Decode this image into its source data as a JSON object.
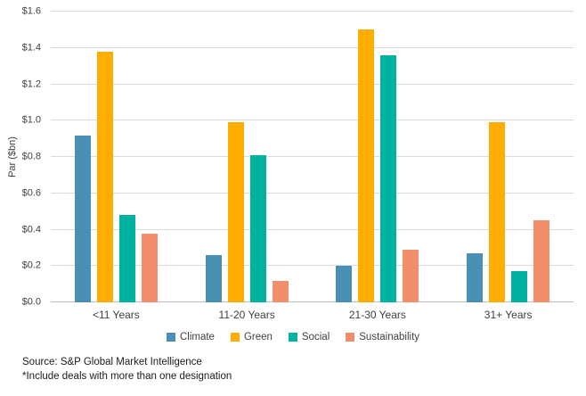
{
  "chart_data": {
    "type": "bar",
    "title": "",
    "xlabel": "",
    "ylabel": "Par ($bn)",
    "ylim": [
      0,
      1.6
    ],
    "grid": true,
    "legend_position": "bottom",
    "yticks": [
      {
        "value": 0.0,
        "label": "$0.0"
      },
      {
        "value": 0.2,
        "label": "$0.2"
      },
      {
        "value": 0.4,
        "label": "$0.4"
      },
      {
        "value": 0.6,
        "label": "$0.6"
      },
      {
        "value": 0.8,
        "label": "$0.8"
      },
      {
        "value": 1.0,
        "label": "$1.0"
      },
      {
        "value": 1.2,
        "label": "$1.2"
      },
      {
        "value": 1.4,
        "label": "$1.4"
      },
      {
        "value": 1.6,
        "label": "$1.6"
      }
    ],
    "categories": [
      "<11 Years",
      "11-20 Years",
      "21-30 Years",
      "31+ Years"
    ],
    "series": [
      {
        "name": "Climate",
        "color": "#4a90b4",
        "values": [
          0.92,
          0.26,
          0.2,
          0.27
        ]
      },
      {
        "name": "Green",
        "color": "#ffad00",
        "values": [
          1.38,
          0.99,
          1.5,
          0.99
        ]
      },
      {
        "name": "Social",
        "color": "#00b2a0",
        "values": [
          0.48,
          0.81,
          1.36,
          0.17
        ]
      },
      {
        "name": "Sustainability",
        "color": "#f28e6c",
        "values": [
          0.38,
          0.12,
          0.29,
          0.45
        ]
      }
    ]
  },
  "footer": {
    "source_line": "Source: S&P Global Market Intelligence",
    "note_line": "*Include deals with more than one designation"
  },
  "colors": {
    "gridline": "#d9d9d9",
    "axis_line": "#bfbfbf",
    "text": "#404040"
  }
}
